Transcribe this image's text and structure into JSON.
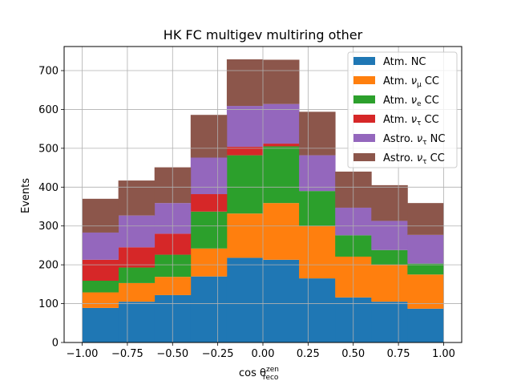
{
  "chart_data": {
    "type": "bar",
    "stacked": true,
    "title": "HK FC multigev multiring other",
    "xlabel": "cos θ",
    "xlabel_sup": "zen",
    "xlabel_sub": "reco",
    "ylabel": "Events",
    "bin_edges": [
      -1.0,
      -0.8,
      -0.6,
      -0.4,
      -0.2,
      0.0,
      0.2,
      0.4,
      0.6,
      0.8,
      1.0
    ],
    "xlim": [
      -1.1,
      1.1
    ],
    "ylim": [
      0,
      762
    ],
    "xticks": [
      -1.0,
      -0.75,
      -0.5,
      -0.25,
      0.0,
      0.25,
      0.5,
      0.75,
      1.0
    ],
    "xtick_labels": [
      "−1.00",
      "−0.75",
      "−0.50",
      "−0.25",
      "0.00",
      "0.25",
      "0.50",
      "0.75",
      "1.00"
    ],
    "yticks": [
      0,
      100,
      200,
      300,
      400,
      500,
      600,
      700
    ],
    "ytick_labels": [
      "0",
      "100",
      "200",
      "300",
      "400",
      "500",
      "600",
      "700"
    ],
    "grid": true,
    "legend_position": "top-right",
    "series": [
      {
        "name": "Atm. NC",
        "label_main": "Atm. NC",
        "label_sym": "",
        "label_sub": "",
        "label_tail": "",
        "color": "#1f77b4",
        "values": [
          89,
          105,
          122,
          170,
          218,
          213,
          165,
          116,
          105,
          87
        ]
      },
      {
        "name": "Atm. νμ CC",
        "label_main": "Atm. ",
        "label_sym": "ν",
        "label_sub": "μ",
        "label_tail": " CC",
        "color": "#ff7f0e",
        "values": [
          40,
          48,
          47,
          72,
          114,
          146,
          135,
          105,
          95,
          88
        ]
      },
      {
        "name": "Atm. νe CC",
        "label_main": "Atm. ",
        "label_sym": "ν",
        "label_sub": "e",
        "label_tail": " CC",
        "color": "#2ca02c",
        "values": [
          30,
          40,
          57,
          95,
          150,
          146,
          90,
          55,
          38,
          28
        ]
      },
      {
        "name": "Atm. ντ CC",
        "label_main": "Atm. ",
        "label_sym": "ν",
        "label_sub": "τ",
        "label_tail": " CC",
        "color": "#d62728",
        "values": [
          54,
          52,
          54,
          45,
          22,
          7,
          0,
          0,
          0,
          0
        ]
      },
      {
        "name": "Astro. ντ NC",
        "label_main": "Astro. ",
        "label_sym": "ν",
        "label_sub": "τ",
        "label_tail": " NC",
        "color": "#9467bd",
        "values": [
          70,
          82,
          79,
          94,
          105,
          102,
          92,
          71,
          75,
          74
        ]
      },
      {
        "name": "Astro. ντ CC",
        "label_main": "Astro. ",
        "label_sym": "ν",
        "label_sub": "τ",
        "label_tail": " CC",
        "color": "#8c564b",
        "values": [
          87,
          90,
          92,
          110,
          120,
          114,
          112,
          93,
          92,
          82
        ]
      }
    ]
  }
}
